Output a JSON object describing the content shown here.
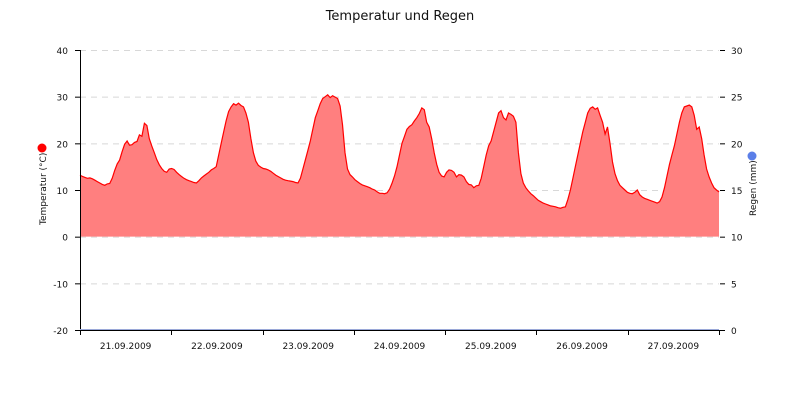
{
  "chart_data": {
    "type": "area",
    "title": "Temperatur und Regen",
    "xlabel": "",
    "ylabel": "Temperatur (°C)",
    "y2label": "Regen (mm)",
    "ylim": [
      -20,
      40
    ],
    "y2lim": [
      0,
      30
    ],
    "yticks": [
      40,
      30,
      20,
      10,
      0,
      -10,
      -20
    ],
    "y2ticks": [
      30,
      25,
      20,
      15,
      10,
      5,
      0
    ],
    "grid": true,
    "categories": [
      "21.09.2009",
      "22.09.2009",
      "23.09.2009",
      "24.09.2009",
      "25.09.2009",
      "26.09.2009",
      "27.09.2009"
    ],
    "legend": [
      {
        "name": "Temperatur (°C)",
        "color": "#ff0000",
        "axis": "left"
      },
      {
        "name": "Regen (mm)",
        "color": "#5b7fe8",
        "axis": "right"
      }
    ],
    "series": [
      {
        "name": "Temperatur",
        "color": "#ff0000",
        "fill": "#ff7f7f",
        "x_hours": [
          0,
          4,
          8,
          12,
          16,
          20,
          24,
          28,
          32,
          34,
          36,
          40,
          44,
          48,
          52,
          56,
          60,
          64,
          68,
          72,
          76,
          80,
          84,
          86,
          88,
          92,
          96,
          100,
          104,
          108,
          112,
          116,
          120,
          124,
          128,
          130,
          132,
          136,
          140,
          144,
          148,
          152,
          156,
          160,
          164,
          168
        ],
        "values": [
          13,
          12.5,
          11.5,
          11,
          13.5,
          19.5,
          20.5,
          24.5,
          19,
          16,
          14,
          14.5,
          12,
          11.5,
          13,
          15,
          22,
          28.5,
          28,
          20,
          15,
          14.5,
          12,
          11.5,
          11.5,
          17,
          24,
          30.5,
          30,
          20,
          13.5,
          11.5,
          10.5,
          9.5,
          9.5,
          12,
          16,
          24,
          27.5,
          24,
          15,
          13,
          14,
          12.5,
          11,
          12
        ]
      }
    ]
  },
  "hourly_temperature": [
    13.2,
    12.9,
    12.7,
    12.5,
    12.6,
    12.4,
    12.1,
    11.8,
    11.5,
    11.2,
    11.0,
    11.3,
    11.4,
    12.5,
    14.2,
    15.6,
    16.4,
    18.2,
    19.8,
    20.5,
    19.6,
    19.7,
    20.2,
    20.4,
    21.8,
    21.5,
    24.3,
    23.8,
    21.0,
    19.4,
    18.0,
    16.5,
    15.4,
    14.6,
    14.0,
    13.8,
    14.5,
    14.6,
    14.4,
    13.8,
    13.3,
    12.9,
    12.5,
    12.2,
    12.0,
    11.8,
    11.6,
    11.5,
    12.0,
    12.6,
    13.0,
    13.4,
    13.8,
    14.3,
    14.6,
    15.0,
    17.5,
    20.0,
    22.5,
    24.8,
    26.8,
    27.8,
    28.5,
    28.2,
    28.6,
    28.1,
    27.8,
    26.5,
    24.5,
    21.0,
    18.0,
    16.2,
    15.3,
    14.9,
    14.6,
    14.5,
    14.3,
    14.0,
    13.6,
    13.2,
    12.9,
    12.6,
    12.3,
    12.1,
    12.0,
    11.9,
    11.8,
    11.6,
    11.5,
    12.5,
    14.5,
    16.5,
    18.5,
    20.5,
    23.0,
    25.5,
    27.0,
    28.5,
    29.6,
    30.0,
    30.4,
    29.8,
    30.2,
    29.9,
    29.6,
    28.0,
    24.0,
    18.0,
    14.5,
    13.3,
    12.8,
    12.2,
    11.8,
    11.4,
    11.1,
    10.9,
    10.7,
    10.5,
    10.2,
    10.0,
    9.6,
    9.3,
    9.3,
    9.2,
    9.4,
    10.2,
    11.5,
    13.0,
    15.0,
    17.5,
    20.0,
    21.5,
    23.0,
    23.6,
    24.0,
    24.8,
    25.5,
    26.4,
    27.6,
    27.2,
    24.5,
    23.5,
    21.0,
    18.0,
    15.5,
    13.8,
    13.0,
    12.8,
    13.8,
    14.3,
    14.2,
    13.8,
    12.8,
    13.3,
    13.2,
    12.8,
    11.8,
    11.2,
    11.1,
    10.5,
    10.9,
    11.0,
    12.5,
    15.0,
    17.5,
    19.5,
    20.5,
    22.5,
    24.5,
    26.5,
    27.0,
    25.5,
    25.0,
    26.5,
    26.2,
    25.8,
    24.5,
    18.0,
    13.5,
    11.5,
    10.5,
    9.8,
    9.2,
    8.8,
    8.3,
    7.8,
    7.5,
    7.2,
    7.0,
    6.8,
    6.6,
    6.5,
    6.4,
    6.2,
    6.1,
    6.3,
    6.4,
    8.0,
    10.0,
    12.5,
    15.0,
    17.5,
    20.0,
    22.5,
    24.5,
    26.5,
    27.5,
    27.8,
    27.3,
    27.6,
    26.0,
    24.5,
    22.0,
    23.5,
    20.0,
    16.0,
    13.5,
    12.0,
    11.0,
    10.5,
    10.0,
    9.5,
    9.3,
    9.2,
    9.5,
    10.0,
    9.0,
    8.5,
    8.2,
    8.0,
    7.8,
    7.6,
    7.4,
    7.2,
    7.5,
    8.5,
    10.5,
    13.0,
    15.5,
    17.5,
    19.5,
    22.0,
    24.5,
    26.5,
    27.8,
    28.0,
    28.2,
    27.8,
    26.0,
    23.0,
    23.5,
    21.0,
    17.5,
    14.5,
    12.8,
    11.5,
    10.5,
    10.0,
    9.6
  ],
  "labels": {
    "title": "Temperatur und Regen",
    "y_left": "Temperatur (°C)",
    "y_right": "Regen (mm)"
  }
}
